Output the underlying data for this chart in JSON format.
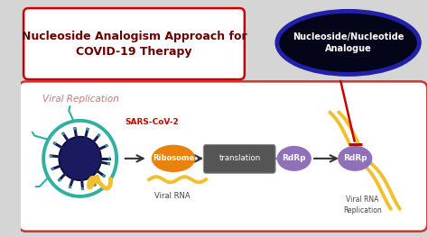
{
  "bg_color": "#d5d5d5",
  "title_box_text": "Nucleoside Analogism Approach for\nCOVID-19 Therapy",
  "title_box_color": "#ffffff",
  "title_box_border": "#cc0000",
  "title_text_color": "#6b0000",
  "viral_box_color": "#ffffff",
  "viral_box_border": "#cc3333",
  "viral_replication_label": "Viral Replication",
  "viral_replication_color": "#cc7777",
  "sars_label": "SARS-CoV-2",
  "sars_color": "#cc0000",
  "ribosome_color": "#e8820c",
  "ribosome_label": "Ribosome",
  "translation_box_color": "#555555",
  "translation_label": "translation",
  "rdrp1_color": "#9070b8",
  "rdrp1_label": "RdRp",
  "rdrp2_color": "#9070b8",
  "rdrp2_label": "RdRp",
  "viral_rna_label": "Viral RNA",
  "viral_rna_replication_label": "Viral RNA\nReplication",
  "analogue_ellipse_color": "#05051a",
  "analogue_ellipse_border": "#2020aa",
  "analogue_text": "Nucleoside/Nucleotide\nAnalogue",
  "analogue_text_color": "#ffffff",
  "inhibit_arrow_color": "#cc0000",
  "arrow_color": "#333333",
  "rna_color": "#f0c030",
  "teal_color": "#30b0a0",
  "virus_body_color": "#1a1a60",
  "spike_color": "#1a1a60",
  "spike_tip_color": "#30a080"
}
